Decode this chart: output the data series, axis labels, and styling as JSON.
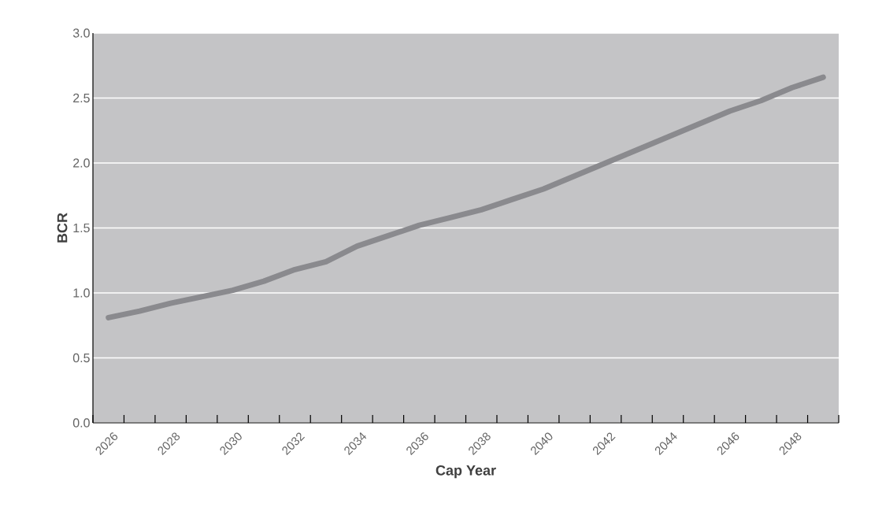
{
  "chart_data": {
    "type": "line",
    "xlabel": "Cap Year",
    "ylabel": "BCR",
    "categories": [
      "2026",
      null,
      "2028",
      null,
      "2030",
      null,
      "2032",
      null,
      "2034",
      null,
      "2036",
      null,
      "2038",
      null,
      "2040",
      null,
      "2042",
      null,
      "2044",
      null,
      "2046",
      null,
      "2048",
      null
    ],
    "series": [
      {
        "color": "#8a8a8e",
        "values": [
          0.81,
          0.86,
          0.92,
          0.97,
          1.02,
          1.09,
          1.18,
          1.24,
          1.36,
          1.44,
          1.52,
          1.58,
          1.64,
          1.72,
          1.8,
          1.9,
          2.0,
          2.1,
          2.2,
          2.3,
          2.4,
          2.48,
          2.58,
          2.66
        ]
      }
    ],
    "ylim": [
      0,
      3
    ],
    "yticks": [
      {
        "value": 0,
        "label": "0.0"
      },
      {
        "value": 0.5,
        "label": "0.5"
      },
      {
        "value": 1,
        "label": "1.0"
      },
      {
        "value": 1.5,
        "label": "1.5"
      },
      {
        "value": 2,
        "label": "2.0"
      },
      {
        "value": 2.5,
        "label": "2.5"
      },
      {
        "value": 3,
        "label": "3.0"
      }
    ],
    "grid": "y",
    "marker": "none",
    "line_style": "solid"
  }
}
